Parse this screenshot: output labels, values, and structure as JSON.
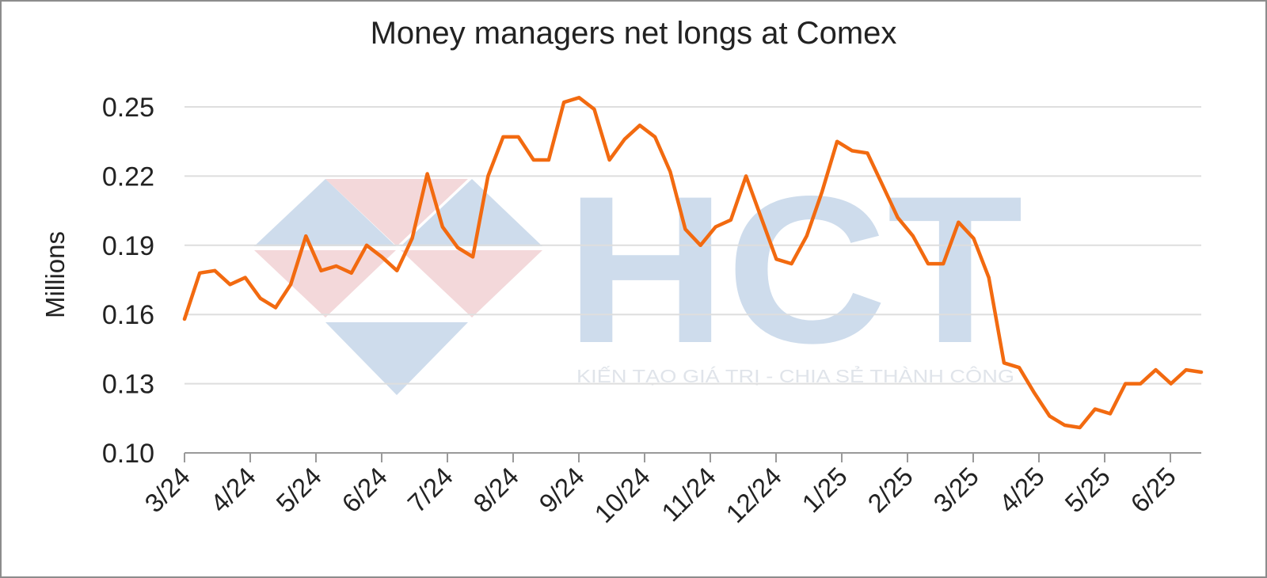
{
  "chart_data": {
    "type": "line",
    "title": "Money managers net longs at Comex",
    "xlabel": "",
    "ylabel": "Millions",
    "ylim": [
      0.1,
      0.25
    ],
    "yticks": [
      "0.25",
      "0.22",
      "0.19",
      "0.16",
      "0.13",
      "0.10"
    ],
    "xticks": [
      "3/24",
      "4/24",
      "5/24",
      "6/24",
      "7/24",
      "8/24",
      "9/24",
      "10/24",
      "11/24",
      "12/24",
      "1/25",
      "2/25",
      "3/25",
      "4/25",
      "5/25",
      "6/25"
    ],
    "grid": true,
    "series": [
      {
        "color": "#f26a10",
        "values": [
          0.158,
          0.178,
          0.179,
          0.173,
          0.176,
          0.167,
          0.163,
          0.173,
          0.194,
          0.179,
          0.181,
          0.178,
          0.19,
          0.185,
          0.179,
          0.193,
          0.221,
          0.198,
          0.189,
          0.185,
          0.22,
          0.237,
          0.237,
          0.227,
          0.227,
          0.252,
          0.254,
          0.249,
          0.227,
          0.236,
          0.242,
          0.237,
          0.222,
          0.197,
          0.19,
          0.198,
          0.201,
          0.22,
          0.202,
          0.184,
          0.182,
          0.194,
          0.213,
          0.235,
          0.231,
          0.23,
          0.216,
          0.202,
          0.194,
          0.182,
          0.182,
          0.2,
          0.193,
          0.176,
          0.139,
          0.137,
          0.126,
          0.116,
          0.112,
          0.111,
          0.119,
          0.117,
          0.13,
          0.13,
          0.136,
          0.13,
          0.136,
          0.135
        ]
      }
    ]
  },
  "watermark": {
    "letters": "HCT",
    "tagline": "KIẾN TẠO GIÁ TRỊ - CHIA SẺ THÀNH CÔNG"
  }
}
